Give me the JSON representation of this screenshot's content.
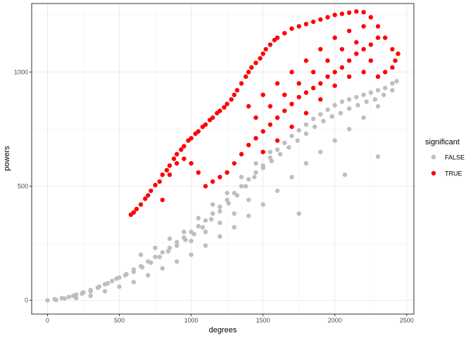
{
  "chart_data": {
    "type": "scatter",
    "xlabel": "degrees",
    "ylabel": "powers",
    "xlim": [
      -110,
      2550
    ],
    "ylim": [
      -60,
      1300
    ],
    "x_ticks": [
      0,
      500,
      1000,
      1500,
      2000,
      2500
    ],
    "y_ticks": [
      0,
      500,
      1000
    ],
    "x_tick_labels": [
      "0",
      "500",
      "1000",
      "1500",
      "2000",
      "2500"
    ],
    "y_tick_labels": [
      "0",
      "500",
      "1000"
    ],
    "grid": true,
    "legend": {
      "title": "significant",
      "position": "right",
      "entries": [
        {
          "label": "FALSE",
          "color": "#bebebe"
        },
        {
          "label": "TRUE",
          "color": "#ff0000"
        }
      ]
    },
    "series": [
      {
        "name": "FALSE",
        "color": "#bebebe",
        "points": [
          [
            0,
            0
          ],
          [
            50,
            5
          ],
          [
            100,
            10
          ],
          [
            150,
            15
          ],
          [
            200,
            25
          ],
          [
            250,
            35
          ],
          [
            300,
            45
          ],
          [
            350,
            55
          ],
          [
            400,
            70
          ],
          [
            450,
            85
          ],
          [
            500,
            100
          ],
          [
            550,
            115
          ],
          [
            600,
            135
          ],
          [
            650,
            150
          ],
          [
            700,
            170
          ],
          [
            750,
            190
          ],
          [
            800,
            210
          ],
          [
            850,
            230
          ],
          [
            900,
            255
          ],
          [
            950,
            275
          ],
          [
            1000,
            300
          ],
          [
            1050,
            325
          ],
          [
            1100,
            350
          ],
          [
            1150,
            380
          ],
          [
            1200,
            410
          ],
          [
            1250,
            440
          ],
          [
            1300,
            470
          ],
          [
            1350,
            500
          ],
          [
            1400,
            530
          ],
          [
            1450,
            560
          ],
          [
            1500,
            590
          ],
          [
            1550,
            625
          ],
          [
            1600,
            660
          ],
          [
            1650,
            690
          ],
          [
            1700,
            720
          ],
          [
            1750,
            745
          ],
          [
            1800,
            770
          ],
          [
            1850,
            795
          ],
          [
            1900,
            815
          ],
          [
            1950,
            835
          ],
          [
            2000,
            855
          ],
          [
            2050,
            870
          ],
          [
            2100,
            880
          ],
          [
            2150,
            890
          ],
          [
            2200,
            900
          ],
          [
            2250,
            910
          ],
          [
            2300,
            920
          ],
          [
            2350,
            930
          ],
          [
            2400,
            950
          ],
          [
            2430,
            960
          ],
          [
            60,
            2
          ],
          [
            120,
            8
          ],
          [
            180,
            20
          ],
          [
            240,
            30
          ],
          [
            300,
            40
          ],
          [
            360,
            60
          ],
          [
            420,
            75
          ],
          [
            480,
            95
          ],
          [
            540,
            110
          ],
          [
            600,
            125
          ],
          [
            660,
            145
          ],
          [
            720,
            165
          ],
          [
            780,
            190
          ],
          [
            840,
            215
          ],
          [
            900,
            240
          ],
          [
            960,
            265
          ],
          [
            1020,
            290
          ],
          [
            1080,
            320
          ],
          [
            1140,
            355
          ],
          [
            1200,
            390
          ],
          [
            1260,
            425
          ],
          [
            1320,
            460
          ],
          [
            1380,
            500
          ],
          [
            1440,
            540
          ],
          [
            1500,
            580
          ],
          [
            1560,
            610
          ],
          [
            1620,
            640
          ],
          [
            1680,
            670
          ],
          [
            1740,
            700
          ],
          [
            1800,
            730
          ],
          [
            1860,
            760
          ],
          [
            1920,
            785
          ],
          [
            1980,
            805
          ],
          [
            2040,
            820
          ],
          [
            2100,
            840
          ],
          [
            2160,
            855
          ],
          [
            2220,
            870
          ],
          [
            2280,
            880
          ],
          [
            2340,
            900
          ],
          [
            2400,
            920
          ],
          [
            700,
            110
          ],
          [
            800,
            140
          ],
          [
            900,
            170
          ],
          [
            1000,
            200
          ],
          [
            1100,
            240
          ],
          [
            1200,
            280
          ],
          [
            1300,
            320
          ],
          [
            1400,
            370
          ],
          [
            1500,
            420
          ],
          [
            1600,
            480
          ],
          [
            1700,
            540
          ],
          [
            1800,
            600
          ],
          [
            1900,
            650
          ],
          [
            2000,
            700
          ],
          [
            2100,
            750
          ],
          [
            2200,
            800
          ],
          [
            2300,
            850
          ],
          [
            1750,
            380
          ],
          [
            2070,
            550
          ],
          [
            2300,
            630
          ],
          [
            650,
            200
          ],
          [
            750,
            230
          ],
          [
            850,
            270
          ],
          [
            950,
            300
          ],
          [
            1050,
            360
          ],
          [
            1150,
            420
          ],
          [
            1250,
            470
          ],
          [
            1350,
            540
          ],
          [
            1450,
            600
          ],
          [
            1550,
            650
          ],
          [
            400,
            40
          ],
          [
            500,
            60
          ],
          [
            600,
            80
          ],
          [
            300,
            20
          ],
          [
            200,
            10
          ],
          [
            1000,
            260
          ],
          [
            1100,
            300
          ],
          [
            1200,
            340
          ],
          [
            1300,
            380
          ],
          [
            1400,
            440
          ]
        ]
      },
      {
        "name": "TRUE",
        "color": "#ff0000",
        "points": [
          [
            580,
            375
          ],
          [
            600,
            385
          ],
          [
            620,
            400
          ],
          [
            650,
            420
          ],
          [
            680,
            445
          ],
          [
            700,
            460
          ],
          [
            720,
            480
          ],
          [
            750,
            505
          ],
          [
            780,
            520
          ],
          [
            800,
            550
          ],
          [
            830,
            570
          ],
          [
            850,
            590
          ],
          [
            880,
            620
          ],
          [
            900,
            640
          ],
          [
            930,
            660
          ],
          [
            950,
            675
          ],
          [
            980,
            700
          ],
          [
            1000,
            710
          ],
          [
            1030,
            730
          ],
          [
            1050,
            740
          ],
          [
            1080,
            760
          ],
          [
            1100,
            770
          ],
          [
            1130,
            790
          ],
          [
            1150,
            800
          ],
          [
            1180,
            820
          ],
          [
            1200,
            830
          ],
          [
            1230,
            845
          ],
          [
            1250,
            860
          ],
          [
            1280,
            880
          ],
          [
            1300,
            900
          ],
          [
            1320,
            920
          ],
          [
            1350,
            950
          ],
          [
            1380,
            980
          ],
          [
            1400,
            1000
          ],
          [
            1420,
            1020
          ],
          [
            1450,
            1040
          ],
          [
            1480,
            1060
          ],
          [
            1500,
            1080
          ],
          [
            1520,
            1100
          ],
          [
            1550,
            1120
          ],
          [
            1580,
            1140
          ],
          [
            1600,
            1150
          ],
          [
            1650,
            1170
          ],
          [
            1700,
            1190
          ],
          [
            1750,
            1200
          ],
          [
            1800,
            1210
          ],
          [
            1850,
            1220
          ],
          [
            1900,
            1230
          ],
          [
            1950,
            1240
          ],
          [
            2000,
            1250
          ],
          [
            2050,
            1255
          ],
          [
            2100,
            1260
          ],
          [
            2150,
            1265
          ],
          [
            2200,
            1262
          ],
          [
            2250,
            1240
          ],
          [
            2300,
            1200
          ],
          [
            2350,
            1150
          ],
          [
            2400,
            1100
          ],
          [
            2420,
            1050
          ],
          [
            2440,
            1080
          ],
          [
            1300,
            600
          ],
          [
            1350,
            640
          ],
          [
            1400,
            680
          ],
          [
            1450,
            710
          ],
          [
            1500,
            740
          ],
          [
            1550,
            770
          ],
          [
            1600,
            800
          ],
          [
            1650,
            830
          ],
          [
            1700,
            860
          ],
          [
            1750,
            890
          ],
          [
            1800,
            910
          ],
          [
            1850,
            930
          ],
          [
            1900,
            950
          ],
          [
            1950,
            980
          ],
          [
            2000,
            1000
          ],
          [
            2050,
            1020
          ],
          [
            2100,
            1050
          ],
          [
            2150,
            1080
          ],
          [
            2200,
            1100
          ],
          [
            2250,
            1120
          ],
          [
            1250,
            560
          ],
          [
            1200,
            540
          ],
          [
            1150,
            520
          ],
          [
            1100,
            500
          ],
          [
            1050,
            560
          ],
          [
            1000,
            600
          ],
          [
            950,
            620
          ],
          [
            900,
            600
          ],
          [
            850,
            550
          ],
          [
            800,
            440
          ],
          [
            1400,
            850
          ],
          [
            1500,
            900
          ],
          [
            1600,
            950
          ],
          [
            1700,
            1000
          ],
          [
            1800,
            1050
          ],
          [
            1900,
            1100
          ],
          [
            2000,
            1150
          ],
          [
            2100,
            1180
          ],
          [
            2200,
            1200
          ],
          [
            2300,
            1150
          ],
          [
            1450,
            800
          ],
          [
            1550,
            850
          ],
          [
            1650,
            900
          ],
          [
            1750,
            950
          ],
          [
            1850,
            1000
          ],
          [
            1950,
            1050
          ],
          [
            2050,
            1100
          ],
          [
            2150,
            1130
          ],
          [
            2250,
            1050
          ],
          [
            2350,
            1000
          ],
          [
            1600,
            700
          ],
          [
            1700,
            760
          ],
          [
            1800,
            820
          ],
          [
            1900,
            880
          ],
          [
            2000,
            940
          ],
          [
            2100,
            980
          ],
          [
            2200,
            1000
          ],
          [
            2300,
            980
          ],
          [
            2400,
            1020
          ],
          [
            1500,
            650
          ]
        ]
      }
    ]
  }
}
